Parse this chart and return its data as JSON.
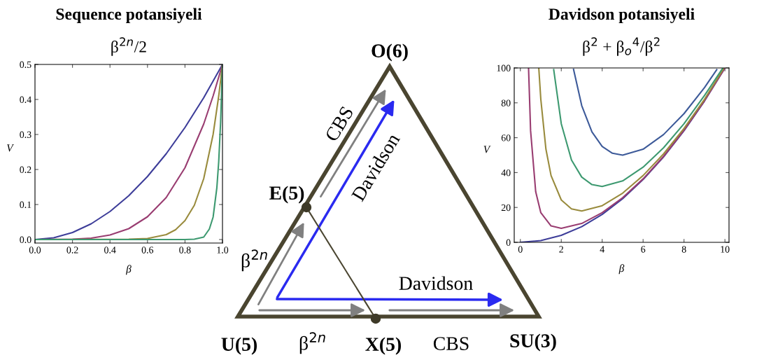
{
  "chart_data": [
    {
      "type": "line",
      "title": "Sequence potansiyeli",
      "subtitle": "β$^{2n}$/2",
      "xlabel": "β",
      "ylabel": "V",
      "xlim": [
        0,
        1
      ],
      "ylim": [
        -0.01,
        0.5
      ],
      "xticks": [
        {
          "value": 0,
          "label": "0.0"
        },
        0.2,
        0.4,
        0.6,
        0.8,
        {
          "value": 1,
          "label": "1.0"
        }
      ],
      "yticks": [
        {
          "value": 0,
          "label": "0.0"
        },
        0.1,
        0.2,
        0.3,
        0.4,
        0.5
      ],
      "grid": false,
      "marker": "none",
      "line_style": "solid",
      "series": [
        {
          "color": "#3d3d99",
          "x": [
            0,
            0.1,
            0.2,
            0.3,
            0.4,
            0.5,
            0.6,
            0.7,
            0.8,
            0.9,
            1
          ],
          "values": [
            0,
            0.005,
            0.02,
            0.045,
            0.08,
            0.125,
            0.18,
            0.245,
            0.32,
            0.405,
            0.5
          ]
        },
        {
          "color": "#993d71",
          "x": [
            0,
            0.2,
            0.3,
            0.4,
            0.5,
            0.6,
            0.7,
            0.8,
            0.9,
            0.95,
            1
          ],
          "values": [
            0,
            0.001,
            0.004,
            0.013,
            0.031,
            0.065,
            0.12,
            0.205,
            0.33,
            0.41,
            0.5
          ]
        },
        {
          "color": "#998b3d",
          "x": [
            0,
            0.5,
            0.6,
            0.7,
            0.75,
            0.8,
            0.85,
            0.9,
            0.95,
            0.98,
            1
          ],
          "values": [
            0,
            0.001,
            0.003,
            0.014,
            0.028,
            0.054,
            0.098,
            0.174,
            0.3,
            0.41,
            0.5
          ]
        },
        {
          "color": "#3d9970",
          "x": [
            0,
            0.8,
            0.85,
            0.9,
            0.93,
            0.95,
            0.97,
            0.98,
            0.99,
            1
          ],
          "values": [
            0,
            0,
            0.001,
            0.007,
            0.03,
            0.064,
            0.148,
            0.223,
            0.335,
            0.5
          ]
        }
      ]
    },
    {
      "type": "other",
      "annotations": [
        "O(6)",
        "E(5)",
        "U(5)",
        "X(5)",
        "SU(3)",
        "CBS",
        "Davidson",
        "β$^{2n}$",
        "Davidson",
        "β$^{2n}$",
        "CBS"
      ]
    },
    {
      "type": "line",
      "title": "Davidson potansiyeli",
      "subtitle": "β$^{2}$ + β$_{o}$$^{4}$/β$^{2}$",
      "xlabel": "β",
      "ylabel": "V",
      "xlim": [
        -0.3,
        10.2
      ],
      "ylim": [
        0,
        100
      ],
      "xticks": [
        0,
        2,
        4,
        6,
        8,
        10
      ],
      "yticks": [
        0,
        20,
        40,
        60,
        80,
        100
      ],
      "grid": false,
      "marker": "none",
      "line_style": "solid",
      "series": [
        {
          "color": "#3d3d99",
          "x": [
            0,
            1,
            2,
            3,
            4,
            5,
            6,
            7,
            8,
            9,
            10
          ],
          "values": [
            0,
            1,
            4,
            9,
            16,
            25,
            36,
            49,
            64,
            81,
            100
          ]
        },
        {
          "color": "#993d71",
          "x": [
            0.4,
            0.5,
            0.75,
            1,
            1.5,
            2,
            3,
            4,
            5,
            6,
            7,
            8,
            9,
            10
          ],
          "values": [
            100,
            64,
            29,
            17,
            9.4,
            8,
            10.8,
            17,
            25.6,
            36.4,
            49.3,
            64.3,
            81.2,
            100
          ]
        },
        {
          "color": "#998b3d",
          "x": [
            0.9,
            1,
            1.25,
            1.5,
            2,
            2.5,
            3,
            4,
            5,
            6,
            7,
            8,
            9,
            9.95
          ],
          "values": [
            100,
            82,
            53.4,
            38.3,
            24.3,
            19.2,
            18,
            21,
            28.2,
            38.3,
            50.7,
            65.3,
            82,
            99.9
          ]
        },
        {
          "color": "#3d9970",
          "x": [
            1.63,
            2,
            2.5,
            3,
            3.5,
            4,
            5,
            6,
            7,
            8,
            9,
            9.9
          ],
          "values": [
            99,
            68,
            47.2,
            37.4,
            33.1,
            32,
            35.2,
            43.1,
            54.2,
            68,
            84.2,
            100
          ]
        },
        {
          "color": "#3d5a99",
          "x": [
            2.6,
            3,
            3.5,
            4,
            4.5,
            5,
            6,
            7,
            8,
            9,
            9.6
          ],
          "values": [
            99.2,
            78.4,
            63.3,
            55,
            51.1,
            50,
            53.4,
            61.8,
            73.8,
            88.7,
            99
          ]
        }
      ]
    }
  ]
}
